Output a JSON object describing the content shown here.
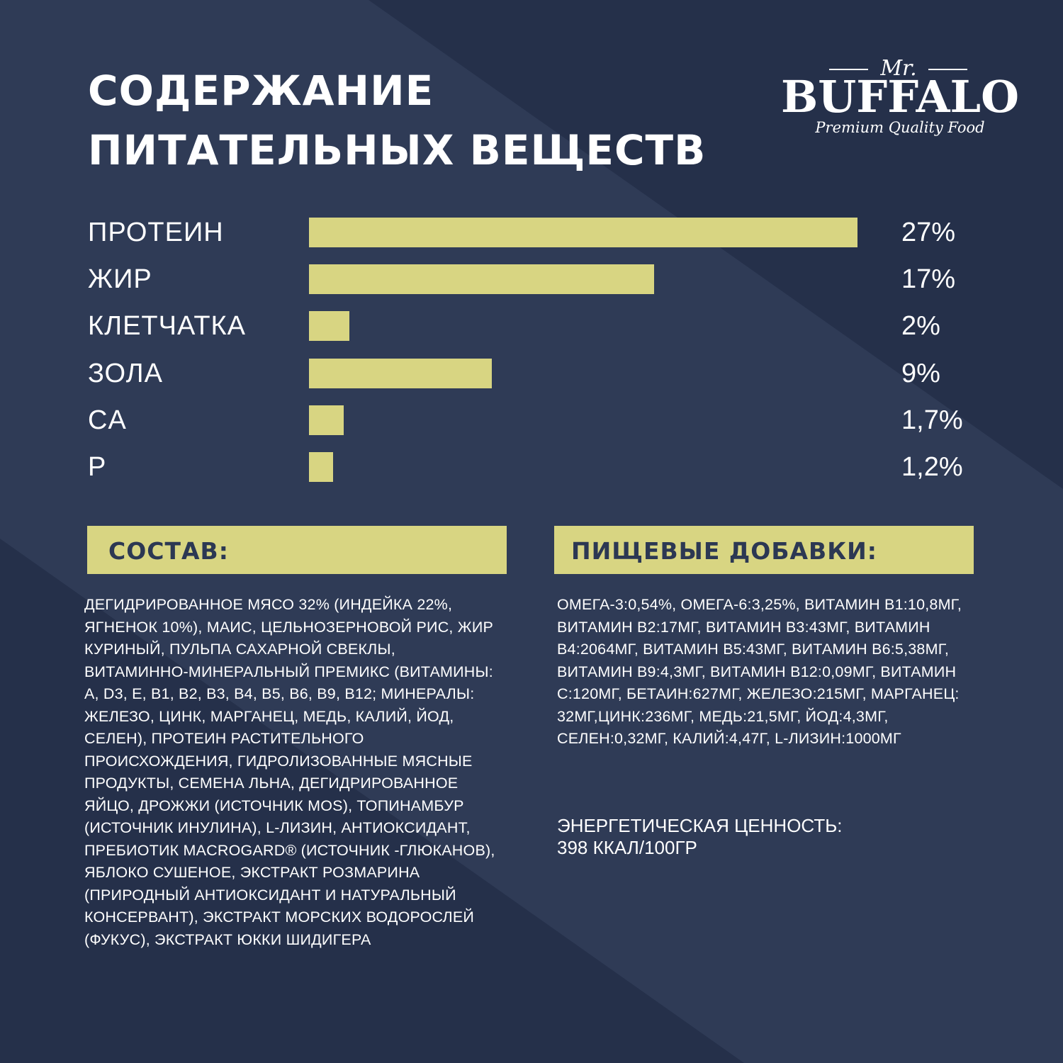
{
  "title": {
    "line1": "СОДЕРЖАНИЕ",
    "line2": "ПИТАТЕЛЬНЫХ ВЕЩЕСТВ"
  },
  "logo": {
    "prefix": "Mr.",
    "name": "BUFFALO",
    "tagline": "Premium Quality Food"
  },
  "colors": {
    "background": "#2c3853",
    "background_dark": "#25304a",
    "background_light": "#323e59",
    "accent": "#d8d582",
    "text": "#ffffff"
  },
  "chart_data": {
    "type": "bar",
    "orientation": "horizontal",
    "categories": [
      "ПРОТЕИН",
      "ЖИР",
      "КЛЕТЧАТКА",
      "ЗОЛА",
      "CA",
      "P"
    ],
    "values": [
      27,
      17,
      2,
      9,
      1.7,
      1.2
    ],
    "value_labels": [
      "27%",
      "17%",
      "2%",
      "9%",
      "1,7%",
      "1,2%"
    ],
    "unit": "%",
    "xlim": [
      0,
      27
    ]
  },
  "composition": {
    "heading": "СОСТАВ:",
    "text": "ДЕГИДРИРОВАННОЕ МЯСО 32% (ИНДЕЙКА 22%, ЯГНЕНОК 10%), МАИС, ЦЕЛЬНОЗЕРНОВОЙ РИС, ЖИР КУРИНЫЙ, ПУЛЬПА САХАРНОЙ СВЕКЛЫ, ВИТАМИННО-МИНЕРАЛЬНЫЙ ПРЕМИКС (ВИТАМИНЫ: A, D3, E, B1, B2, B3, B4, B5, B6, B9, B12; МИНЕРАЛЫ: ЖЕЛЕЗО, ЦИНК, МАРГАНЕЦ, МЕДЬ, КАЛИЙ, ЙОД, СЕЛЕН), ПРОТЕИН РАСТИТЕЛЬНОГО ПРОИСХОЖДЕНИЯ, ГИДРОЛИЗОВАННЫЕ МЯСНЫЕ ПРОДУКТЫ, СЕМЕНА ЛЬНА, ДЕГИДРИРОВАННОЕ ЯЙЦО, ДРОЖЖИ (ИСТОЧНИК MOS), ТОПИНАМБУР (ИСТОЧНИК ИНУЛИНА), L-ЛИЗИН, АНТИОКСИДАНТ, ПРЕБИОТИК MACROGARD® (ИСТОЧНИК -ГЛЮКАНОВ), ЯБЛОКО СУШЕНОЕ, ЭКСТРАКТ РОЗМАРИНА (ПРИРОДНЫЙ АНТИОКСИДАНТ И НАТУРАЛЬНЫЙ КОНСЕРВАНТ), ЭКСТРАКТ МОРСКИХ ВОДОРОСЛЕЙ (ФУКУС), ЭКСТРАКТ ЮККИ ШИДИГЕРА"
  },
  "additives": {
    "heading": "ПИЩЕВЫЕ ДОБАВКИ:",
    "text": "ОМЕГА-3:0,54%, ОМЕГА-6:3,25%, ВИТАМИН B1:10,8МГ, ВИТАМИН B2:17МГ, ВИТАМИН B3:43МГ, ВИТАМИН B4:2064МГ, ВИТАМИН B5:43МГ, ВИТАМИН B6:5,38МГ, ВИТАМИН B9:4,3МГ, ВИТАМИН B12:0,09МГ, ВИТАМИН C:120МГ, БЕТАИН:627МГ, ЖЕЛЕЗО:215МГ, МАРГАНЕЦ: 32МГ,ЦИНК:236МГ, МЕДЬ:21,5МГ, ЙОД:4,3МГ, СЕЛЕН:0,32МГ, КАЛИЙ:4,47Г, L-ЛИЗИН:1000МГ"
  },
  "energy": {
    "label": "ЭНЕРГЕТИЧЕСКАЯ ЦЕННОСТЬ:",
    "value": "398 ККАЛ/100ГР"
  }
}
